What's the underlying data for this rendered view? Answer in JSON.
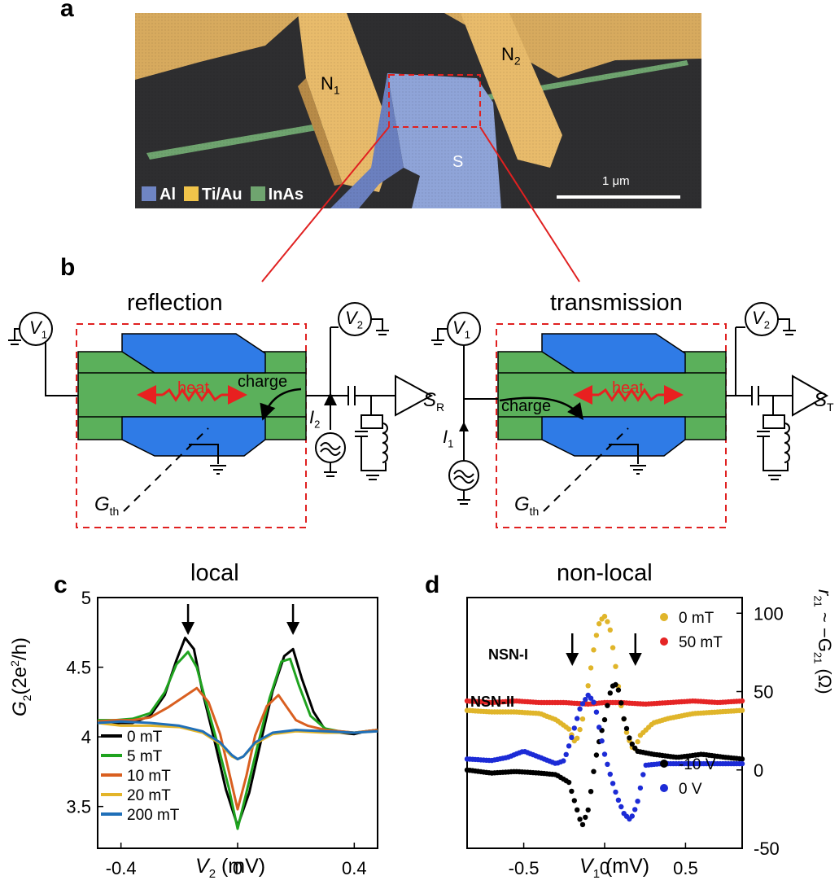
{
  "panel_a": {
    "label": "a",
    "n1": "N",
    "n1_sub": "1",
    "n2": "N",
    "n2_sub": "2",
    "s": "S",
    "scale_bar": "1 μm",
    "legend": [
      {
        "name": "Al",
        "color": "#6f85c4"
      },
      {
        "name": "Ti/Au",
        "color": "#f1c44a"
      },
      {
        "name": "InAs",
        "color": "#6fa46f"
      }
    ]
  },
  "panel_b": {
    "label": "b",
    "left_title": "reflection",
    "right_title": "transmission",
    "heat": "heat",
    "charge": "charge",
    "v1": "V",
    "v1_sub": "1",
    "v2": "V",
    "v2_sub": "2",
    "i2": "I",
    "i2_sub": "2",
    "i1": "I",
    "i1_sub": "1",
    "sr": "S",
    "sr_sub": "R",
    "st": "S",
    "st_sub": "T",
    "gth": "G",
    "gth_sub": "th",
    "colors": {
      "green": "#5bb05b",
      "blue": "#2f7be6",
      "red_dash": "#e02020",
      "heat": "#e82020"
    }
  },
  "panel_c": {
    "label": "c",
    "title": "local",
    "ylabel": "G",
    "ylabel_sub": "2",
    "ylabel_rest": "(2e",
    "ylabel_sup": "2",
    "ylabel_end": "/h)",
    "xlabel": "V",
    "xlabel_sub": "2",
    "xlabel_unit": " (mV)",
    "xticks": [
      "-0.4",
      "0",
      "0.4"
    ],
    "yticks": [
      "3.5",
      "4",
      "4.5",
      "5"
    ]
  },
  "panel_d": {
    "label": "d",
    "title": "non-local",
    "ylabel_right": "r",
    "ylabel_right_sub": "21",
    "ylabel_right_mid": " ~ −G",
    "ylabel_right_sub2": "21",
    "ylabel_right_unit": " (Ω)",
    "xlabel": "V",
    "xlabel_sub": "1",
    "xlabel_unit": " (mV)",
    "xticks": [
      "-0.5",
      "0",
      "0.5"
    ],
    "yticks": [
      "-50",
      "0",
      "50",
      "100"
    ],
    "annot_nsn1": "NSN-I",
    "annot_nsn2": "NSN-II"
  },
  "chart_data": [
    {
      "type": "line",
      "title": "local",
      "xlabel": "V2 (mV)",
      "ylabel": "G2(2e2/h)",
      "xlim": [
        -0.48,
        0.48
      ],
      "ylim": [
        3.2,
        5.0
      ],
      "legend_position": "bottom-left",
      "series": [
        {
          "name": "0 mT",
          "color": "#000000",
          "x": [
            -0.48,
            -0.42,
            -0.36,
            -0.3,
            -0.25,
            -0.21,
            -0.18,
            -0.15,
            -0.12,
            -0.08,
            -0.04,
            0,
            0.04,
            0.08,
            0.12,
            0.16,
            0.19,
            0.22,
            0.26,
            0.3,
            0.35,
            0.4,
            0.44,
            0.48
          ],
          "y": [
            4.11,
            4.1,
            4.1,
            4.15,
            4.3,
            4.55,
            4.71,
            4.63,
            4.32,
            3.98,
            3.62,
            3.36,
            3.6,
            3.97,
            4.33,
            4.58,
            4.63,
            4.42,
            4.18,
            4.05,
            4.03,
            4.02,
            4.04,
            4.05
          ]
        },
        {
          "name": "5 mT",
          "color": "#1fa31f",
          "x": [
            -0.48,
            -0.42,
            -0.36,
            -0.3,
            -0.25,
            -0.21,
            -0.17,
            -0.14,
            -0.11,
            -0.07,
            -0.03,
            0,
            0.03,
            0.07,
            0.11,
            0.15,
            0.18,
            0.21,
            0.25,
            0.3,
            0.35,
            0.4,
            0.44,
            0.48
          ],
          "y": [
            4.12,
            4.12,
            4.13,
            4.17,
            4.32,
            4.52,
            4.61,
            4.5,
            4.26,
            3.96,
            3.63,
            3.34,
            3.6,
            3.95,
            4.28,
            4.54,
            4.56,
            4.37,
            4.15,
            4.06,
            4.04,
            4.03,
            4.04,
            4.05
          ]
        },
        {
          "name": "10 mT",
          "color": "#d95f20",
          "x": [
            -0.48,
            -0.42,
            -0.36,
            -0.3,
            -0.24,
            -0.19,
            -0.14,
            -0.1,
            -0.06,
            -0.03,
            0,
            0.03,
            0.06,
            0.1,
            0.14,
            0.17,
            0.2,
            0.24,
            0.3,
            0.35,
            0.4,
            0.44,
            0.48
          ],
          "y": [
            4.11,
            4.12,
            4.12,
            4.14,
            4.21,
            4.28,
            4.35,
            4.25,
            4.02,
            3.75,
            3.48,
            3.72,
            4.01,
            4.22,
            4.3,
            4.21,
            4.12,
            4.08,
            4.05,
            4.04,
            4.03,
            4.04,
            4.05
          ]
        },
        {
          "name": "20 mT",
          "color": "#e3b429",
          "x": [
            -0.48,
            -0.4,
            -0.3,
            -0.2,
            -0.12,
            -0.06,
            -0.02,
            0,
            0.02,
            0.06,
            0.12,
            0.2,
            0.3,
            0.4,
            0.48
          ],
          "y": [
            4.1,
            4.08,
            4.08,
            4.07,
            4.03,
            3.95,
            3.86,
            3.84,
            3.86,
            3.95,
            4.02,
            4.04,
            4.03,
            4.03,
            4.04
          ]
        },
        {
          "name": "200 mT",
          "color": "#1f6fb8",
          "x": [
            -0.48,
            -0.4,
            -0.3,
            -0.2,
            -0.12,
            -0.06,
            -0.02,
            0,
            0.02,
            0.06,
            0.12,
            0.2,
            0.3,
            0.4,
            0.48
          ],
          "y": [
            4.1,
            4.11,
            4.1,
            4.08,
            4.04,
            3.96,
            3.87,
            3.84,
            3.86,
            3.96,
            4.03,
            4.05,
            4.04,
            4.03,
            4.04
          ]
        }
      ]
    },
    {
      "type": "scatter",
      "title": "non-local",
      "xlabel": "V1 (mV)",
      "ylabel": "r21 ~ −G21 (Ω)",
      "xlim": [
        -0.85,
        0.85
      ],
      "ylim": [
        -50,
        110
      ],
      "legend_position": "top-right",
      "series": [
        {
          "name": "0 mT",
          "color": "#e0b52a",
          "x": [
            -0.85,
            -0.7,
            -0.55,
            -0.4,
            -0.3,
            -0.22,
            -0.18,
            -0.14,
            -0.1,
            -0.06,
            -0.03,
            0,
            0.03,
            0.06,
            0.1,
            0.14,
            0.18,
            0.22,
            0.3,
            0.4,
            0.55,
            0.7,
            0.85
          ],
          "y": [
            38,
            37,
            37,
            36,
            32,
            26,
            17,
            30,
            55,
            82,
            95,
            98,
            92,
            72,
            42,
            22,
            12,
            22,
            30,
            33,
            36,
            37,
            38
          ]
        },
        {
          "name": "50 mT",
          "color": "#e52525",
          "x": [
            -0.85,
            -0.7,
            -0.55,
            -0.4,
            -0.25,
            -0.1,
            0,
            0.1,
            0.25,
            0.4,
            0.55,
            0.7,
            0.85
          ],
          "y": [
            44,
            43,
            44,
            43,
            43,
            42,
            43,
            43,
            42,
            43,
            44,
            43,
            44
          ]
        },
        {
          "name": "-10 V",
          "color": "#000000",
          "x": [
            -0.85,
            -0.7,
            -0.55,
            -0.4,
            -0.3,
            -0.22,
            -0.18,
            -0.14,
            -0.1,
            -0.06,
            -0.03,
            0,
            0.03,
            0.06,
            0.09,
            0.12,
            0.16,
            0.2,
            0.3,
            0.45,
            0.6,
            0.75,
            0.85
          ],
          "y": [
            0,
            -2,
            -1,
            -2,
            -3,
            -8,
            -22,
            -36,
            -25,
            5,
            20,
            32,
            48,
            56,
            50,
            32,
            18,
            12,
            10,
            8,
            10,
            8,
            7
          ]
        },
        {
          "name": "0 V",
          "color": "#1c2bd6",
          "x": [
            -0.85,
            -0.7,
            -0.6,
            -0.5,
            -0.4,
            -0.3,
            -0.25,
            -0.2,
            -0.15,
            -0.1,
            -0.06,
            -0.03,
            0,
            0.04,
            0.08,
            0.12,
            0.16,
            0.2,
            0.25,
            0.35,
            0.5,
            0.7,
            0.85
          ],
          "y": [
            7,
            6,
            8,
            12,
            8,
            4,
            6,
            22,
            40,
            48,
            42,
            25,
            10,
            -5,
            -18,
            -28,
            -32,
            -22,
            3,
            4,
            4,
            4,
            4
          ]
        }
      ]
    }
  ]
}
